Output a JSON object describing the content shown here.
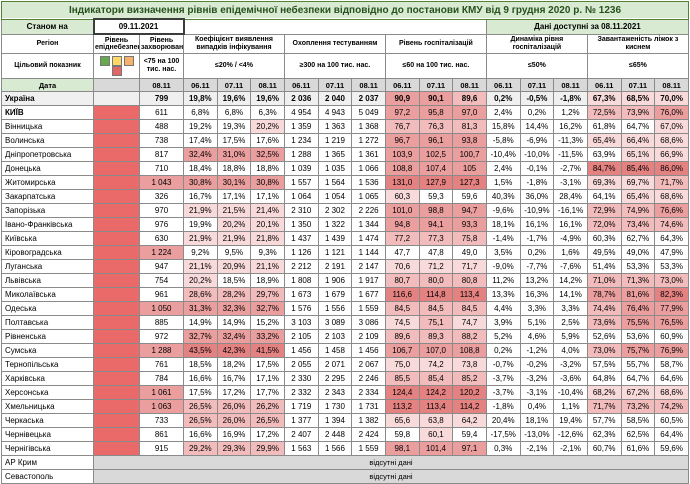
{
  "title": "Індикатори визначення рівнів епідемічної небезпеки відповідно до постанови КМУ від 9 грудня 2020 р. № 1236",
  "meta": {
    "as_of_label": "Станом на",
    "as_of_date": "09.11.2021",
    "available": "Дані доступні за 08.11.2021"
  },
  "columns": {
    "region": "Регіон",
    "target": "Цільовий показник",
    "date": "Дата",
    "level_label": "Рівень епіднебезпеки",
    "groups": [
      {
        "id": "incidence",
        "label": "Рівень захворюваності",
        "threshold": "<75 на 100 тис. нас.",
        "dates": [
          "08.11"
        ]
      },
      {
        "id": "detection",
        "label": "Коефіцієнт виявлення випадків інфікування",
        "threshold": "≤20% / <4%",
        "dates": [
          "06.11",
          "07.11",
          "08.11"
        ]
      },
      {
        "id": "testing",
        "label": "Охоплення тестуванням",
        "threshold": "≥300 на 100 тис. нас.",
        "dates": [
          "06.11",
          "07.11",
          "08.11"
        ]
      },
      {
        "id": "hospitalization",
        "label": "Рівень госпіталізацій",
        "threshold": "≤60 на 100 тис. нас.",
        "dates": [
          "06.11",
          "07.11",
          "08.11"
        ]
      },
      {
        "id": "dynamics",
        "label": "Динаміка рівня госпіталізацій",
        "threshold": "≤50%",
        "dates": [
          "06.11",
          "07.11",
          "08.11"
        ]
      },
      {
        "id": "oxygen",
        "label": "Завантаженість ліжок з киснем",
        "threshold": "≤65%",
        "dates": [
          "06.11",
          "07.11",
          "08.11"
        ]
      }
    ]
  },
  "legend_colors": [
    "#6aa84f",
    "#ffd966",
    "#f6b26b",
    "#e06666"
  ],
  "palette": {
    "header_green": "#d9ead3",
    "date_grey": "#d9d9d9",
    "navy": "#1f3864",
    "level_red": "#ea6a6a",
    "cell_light": "#f9dada",
    "cell_mid": "#f2bcbc",
    "cell_dark": "#eb9e9e",
    "cell_darker": "#e48181"
  },
  "rows": [
    {
      "region": "Україна",
      "bold_row": true,
      "incidence": "799",
      "detection": [
        "19,8%",
        "19,6%",
        "19,6%"
      ],
      "testing": [
        "2 036",
        "2 040",
        "2 037"
      ],
      "hospitalization": [
        "90,9",
        "90,1",
        "89,6"
      ],
      "dynamics": [
        "0,2%",
        "-0,5%",
        "-1,8%"
      ],
      "oxygen": [
        "67,3%",
        "68,5%",
        "70,0%"
      ]
    },
    {
      "region": "КИЇВ",
      "bold_name": true,
      "incidence": "611",
      "detection": [
        "6,8%",
        "6,8%",
        "6,3%"
      ],
      "testing": [
        "4 954",
        "4 943",
        "5 049"
      ],
      "hospitalization": [
        "97,2",
        "95,8",
        "97,0"
      ],
      "dynamics": [
        "2,4%",
        "0,2%",
        "1,2%"
      ],
      "oxygen": [
        "72,5%",
        "73,9%",
        "76,0%"
      ]
    },
    {
      "region": "Вінницька",
      "incidence": "488",
      "detection": [
        "19,2%",
        "19,3%",
        "20,2%"
      ],
      "testing": [
        "1 359",
        "1 363",
        "1 368"
      ],
      "hospitalization": [
        "76,7",
        "76,3",
        "81,3"
      ],
      "dynamics": [
        "15,8%",
        "14,4%",
        "16,2%"
      ],
      "oxygen": [
        "61,8%",
        "64,7%",
        "67,0%"
      ]
    },
    {
      "region": "Волинська",
      "incidence": "738",
      "detection": [
        "17,4%",
        "17,5%",
        "17,6%"
      ],
      "testing": [
        "1 234",
        "1 219",
        "1 272"
      ],
      "hospitalization": [
        "96,7",
        "96,1",
        "93,8"
      ],
      "dynamics": [
        "-5,8%",
        "-6,9%",
        "-11,3%"
      ],
      "oxygen": [
        "65,4%",
        "66,4%",
        "68,6%"
      ]
    },
    {
      "region": "Дніпропетровська",
      "incidence": "817",
      "detection": [
        "32,4%",
        "31,0%",
        "32,5%"
      ],
      "testing": [
        "1 288",
        "1 365",
        "1 361"
      ],
      "hospitalization": [
        "103,9",
        "102,5",
        "100,7"
      ],
      "dynamics": [
        "-10,4%",
        "-10,0%",
        "-11,5%"
      ],
      "oxygen": [
        "63,9%",
        "65,1%",
        "66,9%"
      ]
    },
    {
      "region": "Донецька",
      "incidence": "710",
      "detection": [
        "18,4%",
        "18,8%",
        "18,8%"
      ],
      "testing": [
        "1 039",
        "1 035",
        "1 066"
      ],
      "hospitalization": [
        "108,8",
        "107,4",
        "105"
      ],
      "dynamics": [
        "2,4%",
        "-0,1%",
        "-2,7%"
      ],
      "oxygen": [
        "84,7%",
        "85,4%",
        "86,0%"
      ]
    },
    {
      "region": "Житомирська",
      "incidence": "1 043",
      "detection": [
        "30,8%",
        "30,1%",
        "30,8%"
      ],
      "testing": [
        "1 557",
        "1 564",
        "1 536"
      ],
      "hospitalization": [
        "131,0",
        "127,9",
        "127,3"
      ],
      "dynamics": [
        "1,5%",
        "-1,8%",
        "-3,1%"
      ],
      "oxygen": [
        "69,3%",
        "69,7%",
        "71,7%"
      ]
    },
    {
      "region": "Закарпатська",
      "incidence": "326",
      "detection": [
        "16,7%",
        "17,1%",
        "17,1%"
      ],
      "testing": [
        "1 064",
        "1 054",
        "1 065"
      ],
      "hospitalization": [
        "60,3",
        "59,3",
        "59,6"
      ],
      "dynamics": [
        "40,3%",
        "36,0%",
        "28,4%"
      ],
      "oxygen": [
        "64,1%",
        "65,4%",
        "68,6%"
      ]
    },
    {
      "region": "Запорізька",
      "incidence": "970",
      "detection": [
        "21,9%",
        "21,5%",
        "21,4%"
      ],
      "testing": [
        "2 310",
        "2 302",
        "2 226"
      ],
      "hospitalization": [
        "101,0",
        "98,8",
        "94,7"
      ],
      "dynamics": [
        "-9,6%",
        "-10,9%",
        "-16,1%"
      ],
      "oxygen": [
        "72,9%",
        "74,9%",
        "76,6%"
      ]
    },
    {
      "region": "Івано-Франківська",
      "incidence": "976",
      "detection": [
        "19,9%",
        "20,2%",
        "20,1%"
      ],
      "testing": [
        "1 350",
        "1 322",
        "1 344"
      ],
      "hospitalization": [
        "94,8",
        "94,1",
        "93,3"
      ],
      "dynamics": [
        "18,1%",
        "16,1%",
        "16,1%"
      ],
      "oxygen": [
        "72,0%",
        "73,4%",
        "74,6%"
      ]
    },
    {
      "region": "Київська",
      "incidence": "630",
      "detection": [
        "21,9%",
        "21,9%",
        "21,8%"
      ],
      "testing": [
        "1 437",
        "1 439",
        "1 474"
      ],
      "hospitalization": [
        "77,2",
        "77,3",
        "75,8"
      ],
      "dynamics": [
        "-1,4%",
        "-1,7%",
        "-4,9%"
      ],
      "oxygen": [
        "60,3%",
        "62,7%",
        "64,3%"
      ]
    },
    {
      "region": "Кіровоградська",
      "incidence": "1 224",
      "detection": [
        "9,2%",
        "9,5%",
        "9,3%"
      ],
      "testing": [
        "1 126",
        "1 121",
        "1 144"
      ],
      "hospitalization": [
        "47,7",
        "47,8",
        "49,0"
      ],
      "dynamics": [
        "3,5%",
        "0,2%",
        "1,6%"
      ],
      "oxygen": [
        "49,5%",
        "49,0%",
        "47,9%"
      ]
    },
    {
      "region": "Луганська",
      "incidence": "947",
      "detection": [
        "21,1%",
        "20,9%",
        "21,1%"
      ],
      "testing": [
        "2 212",
        "2 191",
        "2 147"
      ],
      "hospitalization": [
        "70,6",
        "71,2",
        "71,7"
      ],
      "dynamics": [
        "-9,0%",
        "-7,7%",
        "-7,6%"
      ],
      "oxygen": [
        "51,4%",
        "53,3%",
        "53,3%"
      ]
    },
    {
      "region": "Львівська",
      "incidence": "754",
      "detection": [
        "20,2%",
        "18,5%",
        "18,9%"
      ],
      "testing": [
        "1 808",
        "1 906",
        "1 917"
      ],
      "hospitalization": [
        "80,7",
        "80,0",
        "80,8"
      ],
      "dynamics": [
        "11,2%",
        "13,2%",
        "14,2%"
      ],
      "oxygen": [
        "71,0%",
        "71,3%",
        "73,0%"
      ]
    },
    {
      "region": "Миколаївська",
      "incidence": "961",
      "detection": [
        "28,6%",
        "28,2%",
        "29,7%"
      ],
      "testing": [
        "1 673",
        "1 679",
        "1 677"
      ],
      "hospitalization": [
        "116,6",
        "114,8",
        "113,4"
      ],
      "dynamics": [
        "13,3%",
        "16,3%",
        "14,1%"
      ],
      "oxygen": [
        "78,7%",
        "81,6%",
        "82,3%"
      ]
    },
    {
      "region": "Одеська",
      "incidence": "1 050",
      "detection": [
        "31,3%",
        "32,3%",
        "32,7%"
      ],
      "testing": [
        "1 576",
        "1 556",
        "1 559"
      ],
      "hospitalization": [
        "84,5",
        "84,5",
        "84,5"
      ],
      "dynamics": [
        "4,4%",
        "3,3%",
        "3,3%"
      ],
      "oxygen": [
        "74,4%",
        "76,4%",
        "77,9%"
      ]
    },
    {
      "region": "Полтавська",
      "incidence": "885",
      "detection": [
        "14,9%",
        "14,9%",
        "15,2%"
      ],
      "testing": [
        "3 103",
        "3 089",
        "3 086"
      ],
      "hospitalization": [
        "74,5",
        "75,1",
        "74,7"
      ],
      "dynamics": [
        "3,9%",
        "5,1%",
        "2,5%"
      ],
      "oxygen": [
        "73,6%",
        "75,5%",
        "76,5%"
      ]
    },
    {
      "region": "Рівненська",
      "incidence": "972",
      "detection": [
        "32,7%",
        "32,4%",
        "33,2%"
      ],
      "testing": [
        "2 105",
        "2 103",
        "2 109"
      ],
      "hospitalization": [
        "89,6",
        "89,3",
        "88,2"
      ],
      "dynamics": [
        "5,2%",
        "4,6%",
        "5,9%"
      ],
      "oxygen": [
        "52,6%",
        "53,6%",
        "60,9%"
      ]
    },
    {
      "region": "Сумська",
      "incidence": "1 288",
      "detection": [
        "43,5%",
        "42,3%",
        "41,5%"
      ],
      "testing": [
        "1 456",
        "1 458",
        "1 456"
      ],
      "hospitalization": [
        "106,7",
        "107,0",
        "108,8"
      ],
      "dynamics": [
        "0,2%",
        "-1,2%",
        "4,0%"
      ],
      "oxygen": [
        "73,0%",
        "75,7%",
        "76,9%"
      ]
    },
    {
      "region": "Тернопільська",
      "incidence": "761",
      "detection": [
        "18,5%",
        "18,2%",
        "17,5%"
      ],
      "testing": [
        "2 055",
        "2 071",
        "2 067"
      ],
      "hospitalization": [
        "75,0",
        "74,2",
        "73,8"
      ],
      "dynamics": [
        "-0,7%",
        "-0,2%",
        "-3,2%"
      ],
      "oxygen": [
        "57,5%",
        "55,7%",
        "58,7%"
      ]
    },
    {
      "region": "Харківська",
      "incidence": "784",
      "detection": [
        "16,6%",
        "16,7%",
        "17,1%"
      ],
      "testing": [
        "2 330",
        "2 295",
        "2 246"
      ],
      "hospitalization": [
        "85,5",
        "85,4",
        "85,2"
      ],
      "dynamics": [
        "-3,7%",
        "-3,2%",
        "-3,6%"
      ],
      "oxygen": [
        "64,8%",
        "64,7%",
        "64,6%"
      ]
    },
    {
      "region": "Херсонська",
      "incidence": "1 061",
      "detection": [
        "17,5%",
        "17,2%",
        "17,7%"
      ],
      "testing": [
        "2 332",
        "2 343",
        "2 334"
      ],
      "hospitalization": [
        "124,4",
        "124,2",
        "120,2"
      ],
      "dynamics": [
        "-3,7%",
        "-3,1%",
        "-10,4%"
      ],
      "oxygen": [
        "68,2%",
        "67,2%",
        "68,6%"
      ]
    },
    {
      "region": "Хмельницька",
      "incidence": "1 063",
      "detection": [
        "26,5%",
        "26,0%",
        "26,2%"
      ],
      "testing": [
        "1 719",
        "1 730",
        "1 731"
      ],
      "hospitalization": [
        "113,2",
        "113,4",
        "114,2"
      ],
      "dynamics": [
        "-1,8%",
        "0,4%",
        "1,1%"
      ],
      "oxygen": [
        "71,7%",
        "73,2%",
        "74,2%"
      ]
    },
    {
      "region": "Черкаська",
      "incidence": "733",
      "detection": [
        "26,5%",
        "26,0%",
        "26,5%"
      ],
      "testing": [
        "1 377",
        "1 394",
        "1 382"
      ],
      "hospitalization": [
        "65,6",
        "63,8",
        "64,2"
      ],
      "dynamics": [
        "20,4%",
        "18,1%",
        "19,4%"
      ],
      "oxygen": [
        "57,7%",
        "58,5%",
        "60,5%"
      ]
    },
    {
      "region": "Чернівецька",
      "incidence": "861",
      "detection": [
        "16,6%",
        "16,9%",
        "17,2%"
      ],
      "testing": [
        "2 407",
        "2 448",
        "2 424"
      ],
      "hospitalization": [
        "59,8",
        "60,1",
        "59,4"
      ],
      "dynamics": [
        "-17,5%",
        "-13,0%",
        "-12,6%"
      ],
      "oxygen": [
        "62,3%",
        "62,5%",
        "64,4%"
      ]
    },
    {
      "region": "Чернігівська",
      "incidence": "915",
      "detection": [
        "29,2%",
        "29,3%",
        "29,9%"
      ],
      "testing": [
        "1 563",
        "1 566",
        "1 559"
      ],
      "hospitalization": [
        "98,1",
        "101,4",
        "97,1"
      ],
      "dynamics": [
        "0,3%",
        "-2,1%",
        "-2,1%"
      ],
      "oxygen": [
        "60,7%",
        "61,6%",
        "59,6%"
      ]
    }
  ],
  "no_data_rows": [
    {
      "region": "АР Крим",
      "text": "відсутні дані"
    },
    {
      "region": "Севастополь",
      "text": "відсутні дані"
    }
  ]
}
